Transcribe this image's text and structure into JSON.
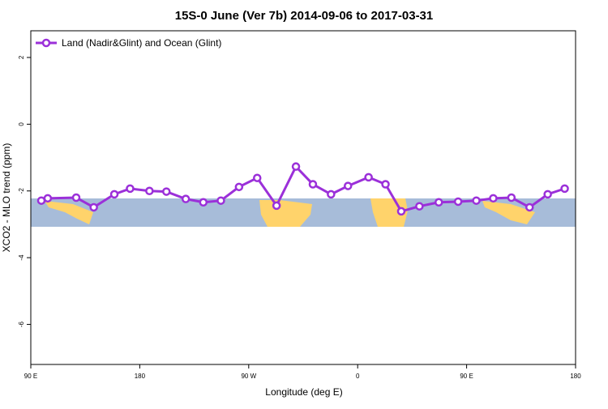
{
  "chart_data": {
    "type": "line",
    "title": "15S-0 June (Ver 7b)   2014-09-06 to 2017-03-31",
    "x_label": "Longitude (deg E)",
    "y_label": "XCO2 - MLO trend (ppm)",
    "x": [
      98.7,
      104,
      127.5,
      142,
      159,
      172,
      188,
      202,
      218,
      232.5,
      247,
      262,
      277,
      293,
      309,
      323,
      338,
      352,
      369,
      383,
      396,
      411,
      427,
      443,
      458,
      472,
      487,
      502,
      517,
      531
    ],
    "series": [
      {
        "name": "Land (Nadir&Glint) and Ocean (Glint)",
        "color": "#9b30d9",
        "values": [
          -2.29,
          -2.22,
          -2.2,
          -2.49,
          -2.1,
          -1.93,
          -2.0,
          -2.02,
          -2.24,
          -2.34,
          -2.29,
          -1.88,
          -1.61,
          -2.44,
          -1.27,
          -1.8,
          -2.1,
          -1.85,
          -1.59,
          -1.8,
          -2.61,
          -2.46,
          -2.34,
          -2.32,
          -2.29,
          -2.22,
          -2.2,
          -2.49,
          -2.1,
          -1.93
        ]
      }
    ],
    "xlim": [
      90,
      540
    ],
    "xticks": [
      {
        "value": 90,
        "label": "90 E"
      },
      {
        "value": 180,
        "label": "180"
      },
      {
        "value": 270,
        "label": "90 W"
      },
      {
        "value": 360,
        "label": "0"
      },
      {
        "value": 450,
        "label": "90 E"
      },
      {
        "value": 540,
        "label": "180"
      }
    ],
    "ylim": [
      -7.2,
      2.8
    ],
    "yticks": [
      -6,
      -4,
      -2,
      0,
      2
    ],
    "legend": "top-left"
  }
}
